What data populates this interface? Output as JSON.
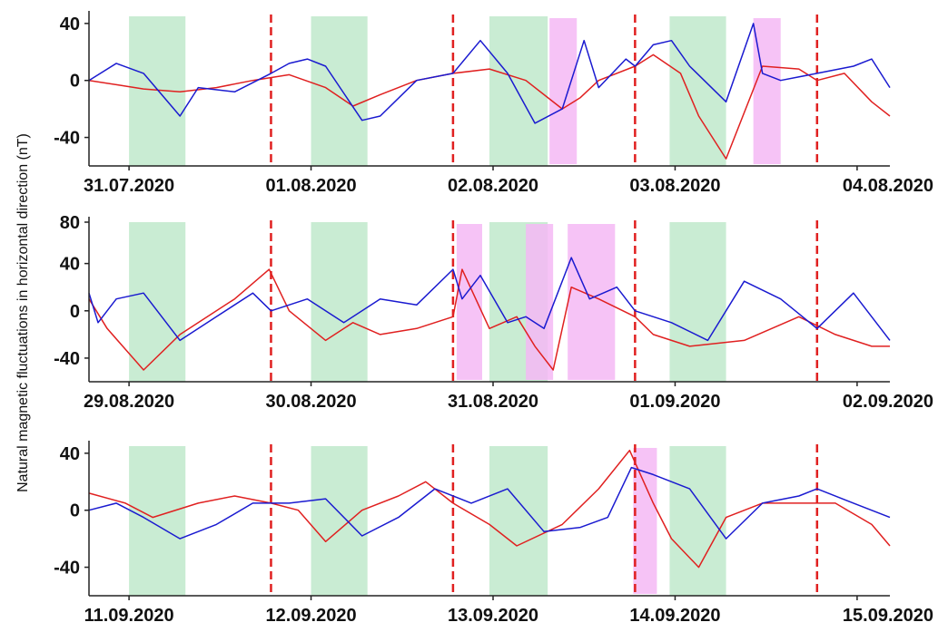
{
  "figure": {
    "ylabel": "Natural magnetic fluctuations in horizontal direction (nT)"
  },
  "colors": {
    "series_a": "#e02020",
    "series_b": "#1a1ad0",
    "green_band": "#c9ecd3",
    "magenta_band": "#f4b8f4",
    "day_divider": "#e02020"
  },
  "chart_data": [
    {
      "type": "line",
      "panel": "top",
      "xlim": [
        0,
        4.4
      ],
      "ylim": [
        -60,
        45
      ],
      "yticks": [
        40,
        0,
        -40
      ],
      "x_ticks": [
        0.22,
        1.22,
        2.22,
        3.22,
        4.22
      ],
      "x_tick_labels": [
        "31.07.2020",
        "01.08.2020",
        "02.08.2020",
        "03.08.2020",
        "04.08.2020"
      ],
      "day_dividers": [
        1,
        2,
        3,
        4
      ],
      "green_bands": [
        [
          0.22,
          0.53
        ],
        [
          1.22,
          1.53
        ],
        [
          2.2,
          2.52
        ],
        [
          3.19,
          3.5
        ]
      ],
      "magenta_bands": [
        [
          2.53,
          2.68
        ],
        [
          3.65,
          3.8
        ]
      ],
      "series": [
        {
          "color": "red",
          "x": [
            0,
            0.15,
            0.3,
            0.5,
            0.7,
            0.9,
            1.1,
            1.3,
            1.45,
            1.6,
            1.8,
            2.0,
            2.2,
            2.4,
            2.5,
            2.6,
            2.7,
            2.8,
            3.0,
            3.1,
            3.25,
            3.35,
            3.5,
            3.7,
            3.9,
            4.0,
            4.15,
            4.3,
            4.4
          ],
          "y": [
            0,
            -3,
            -6,
            -8,
            -5,
            0,
            4,
            -5,
            -18,
            -10,
            0,
            5,
            8,
            0,
            -10,
            -20,
            -12,
            0,
            10,
            18,
            5,
            -25,
            -55,
            10,
            8,
            0,
            5,
            -15,
            -25
          ]
        },
        {
          "color": "blue",
          "x": [
            0,
            0.15,
            0.3,
            0.5,
            0.6,
            0.8,
            1.0,
            1.1,
            1.2,
            1.3,
            1.5,
            1.6,
            1.8,
            2.0,
            2.15,
            2.3,
            2.45,
            2.6,
            2.72,
            2.8,
            2.95,
            3.0,
            3.1,
            3.2,
            3.3,
            3.5,
            3.65,
            3.7,
            3.8,
            4.0,
            4.2,
            4.3,
            4.4
          ],
          "y": [
            0,
            12,
            5,
            -25,
            -5,
            -8,
            5,
            12,
            15,
            10,
            -28,
            -25,
            0,
            5,
            28,
            5,
            -30,
            -20,
            28,
            -5,
            15,
            10,
            25,
            28,
            10,
            -15,
            40,
            5,
            0,
            5,
            10,
            15,
            -5
          ]
        }
      ]
    },
    {
      "type": "line",
      "panel": "middle",
      "xlim": [
        0,
        4.4
      ],
      "ylim": [
        -60,
        75
      ],
      "yticks": [
        80,
        40,
        0,
        -40
      ],
      "x_ticks": [
        0.22,
        1.22,
        2.22,
        3.22,
        4.22
      ],
      "x_tick_labels": [
        "29.08.2020",
        "30.08.2020",
        "31.08.2020",
        "01.09.2020",
        "02.09.2020"
      ],
      "day_dividers": [
        1,
        2,
        3,
        4
      ],
      "green_bands": [
        [
          0.22,
          0.53
        ],
        [
          1.22,
          1.53
        ],
        [
          2.2,
          2.52
        ],
        [
          3.19,
          3.5
        ]
      ],
      "magenta_bands": [
        [
          2.02,
          2.16
        ],
        [
          2.4,
          2.55
        ],
        [
          2.63,
          2.89
        ]
      ],
      "series": [
        {
          "color": "red",
          "x": [
            0,
            0.1,
            0.3,
            0.5,
            0.8,
            0.99,
            1.1,
            1.3,
            1.45,
            1.6,
            1.8,
            2.0,
            2.05,
            2.2,
            2.35,
            2.45,
            2.55,
            2.65,
            2.8,
            3.0,
            3.1,
            3.3,
            3.6,
            3.9,
            4.1,
            4.3,
            4.4
          ],
          "y": [
            10,
            -15,
            -50,
            -20,
            10,
            35,
            0,
            -25,
            -10,
            -20,
            -15,
            -5,
            35,
            -15,
            -5,
            -30,
            -50,
            20,
            10,
            -5,
            -20,
            -30,
            -25,
            -5,
            -20,
            -30,
            -30
          ]
        },
        {
          "color": "blue",
          "x": [
            0,
            0.05,
            0.15,
            0.3,
            0.5,
            0.7,
            0.9,
            1.0,
            1.2,
            1.4,
            1.6,
            1.8,
            2.0,
            2.05,
            2.15,
            2.3,
            2.4,
            2.5,
            2.65,
            2.75,
            2.9,
            3.0,
            3.2,
            3.4,
            3.6,
            3.8,
            4.0,
            4.2,
            4.4
          ],
          "y": [
            15,
            -10,
            10,
            15,
            -25,
            -5,
            15,
            0,
            10,
            -10,
            10,
            5,
            35,
            10,
            30,
            -10,
            -5,
            -15,
            45,
            10,
            20,
            0,
            -10,
            -25,
            25,
            10,
            -15,
            15,
            -25
          ]
        }
      ]
    },
    {
      "type": "line",
      "panel": "bottom",
      "xlim": [
        0,
        4.4
      ],
      "ylim": [
        -60,
        45
      ],
      "yticks": [
        40,
        0,
        -40
      ],
      "x_ticks": [
        0.22,
        1.22,
        2.22,
        3.22,
        4.22
      ],
      "x_tick_labels": [
        "11.09.2020",
        "12.09.2020",
        "13.09.2020",
        "14.09.2020",
        "15.09.2020"
      ],
      "day_dividers": [
        1,
        2,
        3,
        4
      ],
      "green_bands": [
        [
          0.22,
          0.53
        ],
        [
          1.22,
          1.53
        ],
        [
          2.2,
          2.52
        ],
        [
          3.19,
          3.5
        ]
      ],
      "magenta_bands": [
        [
          2.99,
          3.12
        ]
      ],
      "series": [
        {
          "color": "red",
          "x": [
            0,
            0.2,
            0.35,
            0.6,
            0.8,
            1.0,
            1.15,
            1.3,
            1.5,
            1.7,
            1.85,
            2.0,
            2.2,
            2.35,
            2.6,
            2.8,
            2.97,
            3.1,
            3.2,
            3.35,
            3.5,
            3.7,
            3.9,
            4.1,
            4.3,
            4.4
          ],
          "y": [
            12,
            5,
            -5,
            5,
            10,
            5,
            0,
            -22,
            0,
            10,
            20,
            5,
            -10,
            -25,
            -10,
            15,
            42,
            5,
            -20,
            -40,
            -5,
            5,
            5,
            5,
            -10,
            -25
          ]
        },
        {
          "color": "blue",
          "x": [
            0,
            0.15,
            0.3,
            0.5,
            0.7,
            0.9,
            1.1,
            1.3,
            1.5,
            1.7,
            1.9,
            2.1,
            2.3,
            2.5,
            2.7,
            2.85,
            2.98,
            3.1,
            3.3,
            3.5,
            3.7,
            3.9,
            4.0,
            4.2,
            4.4
          ],
          "y": [
            0,
            5,
            -5,
            -20,
            -10,
            5,
            5,
            8,
            -18,
            -5,
            15,
            5,
            15,
            -15,
            -12,
            -5,
            30,
            25,
            15,
            -20,
            5,
            10,
            15,
            5,
            -5
          ]
        }
      ]
    }
  ]
}
